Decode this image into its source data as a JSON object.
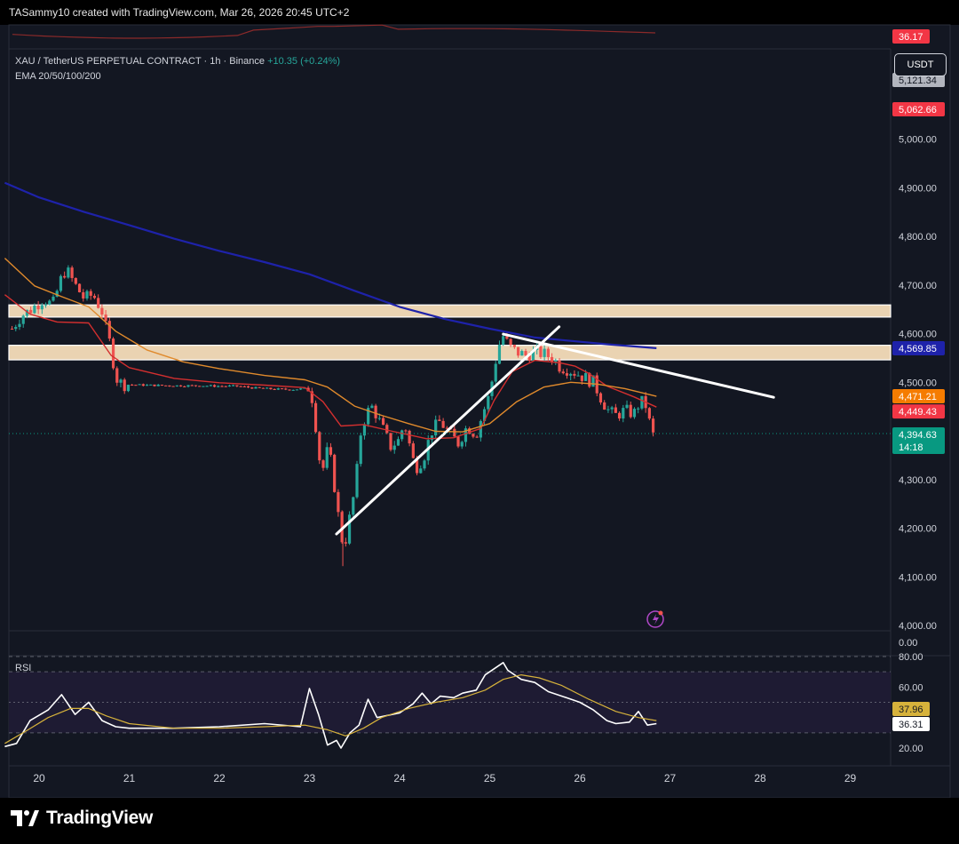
{
  "header": {
    "attribution": "TASammy10 created with TradingView.com, Mar 26, 2026 20:45 UTC+2"
  },
  "legend": {
    "symbol_line": "XAU / TetherUS PERPETUAL CONTRACT · 1h · Binance",
    "change": "+10.35 (+0.24%)",
    "indicator_line": "EMA 20/50/100/200",
    "rsi_label": "RSI"
  },
  "currency_button": "USDT",
  "branding": {
    "logo_text": "TradingView"
  },
  "colors": {
    "background": "#131722",
    "up_candle": "#26a69a",
    "down_candle": "#ef5350",
    "ema20": "#d32f2f",
    "ema50": "#e08a2c",
    "ema200": "#1e22aa",
    "zone": "#ead3b2",
    "trendline": "#ffffff",
    "rsi_line": "#ffffff",
    "rsi_ma": "#d6b23b"
  },
  "chart_data": [
    {
      "type": "candlestick",
      "title": "XAU / TetherUS PERPETUAL CONTRACT · 1h · Binance",
      "x_ticks": [
        "20",
        "21",
        "22",
        "23",
        "24",
        "25",
        "26",
        "27",
        "28",
        "29"
      ],
      "y_ticks": [
        "5,000.00",
        "4,900.00",
        "4,800.00",
        "4,700.00",
        "4,600.00",
        "4,500.00",
        "4,300.00",
        "4,200.00",
        "4,100.00",
        "4,000.00"
      ],
      "ylim": [
        4000,
        5100
      ],
      "price_labels": [
        {
          "text": "5,121.34",
          "color": "#b2b5be"
        },
        {
          "text": "5,062.66",
          "color": "#f23645"
        },
        {
          "text": "4,569.85",
          "color": "#1e22aa"
        },
        {
          "text": "4,471.21",
          "color": "#f57c00"
        },
        {
          "text": "4,449.43",
          "color": "#f23645"
        },
        {
          "text": "4,394.63",
          "color": "#089981",
          "sub": "14:18"
        }
      ],
      "last_price": 4394.63,
      "zones": [
        {
          "from": 4634,
          "to": 4659
        },
        {
          "from": 4546,
          "to": 4576
        }
      ],
      "trendlines": [
        {
          "from": [
            23.3,
            4188
          ],
          "to": [
            25.77,
            4614
          ]
        },
        {
          "from": [
            25.15,
            4599
          ],
          "to": [
            28.15,
            4469
          ]
        }
      ],
      "ohlc_path": [
        [
          19.7,
          4610
        ],
        [
          19.8,
          4636
        ],
        [
          19.92,
          4651
        ],
        [
          20.05,
          4672
        ],
        [
          20.15,
          4658
        ],
        [
          20.25,
          4716
        ],
        [
          20.3,
          4733
        ],
        [
          20.4,
          4700
        ],
        [
          20.5,
          4672
        ],
        [
          20.6,
          4680
        ],
        [
          20.7,
          4645
        ],
        [
          20.75,
          4605
        ],
        [
          20.8,
          4570
        ],
        [
          20.85,
          4510
        ],
        [
          20.92,
          4496
        ],
        [
          21.0,
          4495
        ],
        [
          21.2,
          4494
        ],
        [
          21.5,
          4493
        ],
        [
          21.8,
          4493
        ],
        [
          22.0,
          4492
        ],
        [
          22.2,
          4492
        ],
        [
          22.4,
          4488
        ],
        [
          22.6,
          4486
        ],
        [
          22.8,
          4485
        ],
        [
          22.95,
          4487
        ],
        [
          23.0,
          4490
        ],
        [
          23.05,
          4450
        ],
        [
          23.1,
          4350
        ],
        [
          23.15,
          4322
        ],
        [
          23.2,
          4360
        ],
        [
          23.25,
          4330
        ],
        [
          23.3,
          4250
        ],
        [
          23.35,
          4190
        ],
        [
          23.38,
          4155
        ],
        [
          23.42,
          4196
        ],
        [
          23.48,
          4255
        ],
        [
          23.52,
          4300
        ],
        [
          23.55,
          4380
        ],
        [
          23.6,
          4420
        ],
        [
          23.65,
          4440
        ],
        [
          23.7,
          4450
        ],
        [
          23.8,
          4410
        ],
        [
          23.9,
          4368
        ],
        [
          24.0,
          4382
        ],
        [
          24.05,
          4420
        ],
        [
          24.1,
          4380
        ],
        [
          24.15,
          4340
        ],
        [
          24.2,
          4325
        ],
        [
          24.28,
          4352
        ],
        [
          24.35,
          4398
        ],
        [
          24.45,
          4420
        ],
        [
          24.55,
          4395
        ],
        [
          24.65,
          4375
        ],
        [
          24.75,
          4410
        ],
        [
          24.85,
          4392
        ],
        [
          24.92,
          4435
        ],
        [
          25.0,
          4475
        ],
        [
          25.05,
          4530
        ],
        [
          25.1,
          4575
        ],
        [
          25.15,
          4595
        ],
        [
          25.22,
          4572
        ],
        [
          25.3,
          4562
        ],
        [
          25.4,
          4555
        ],
        [
          25.5,
          4562
        ],
        [
          25.6,
          4558
        ],
        [
          25.7,
          4550
        ],
        [
          25.78,
          4532
        ],
        [
          25.85,
          4528
        ],
        [
          25.95,
          4520
        ],
        [
          26.05,
          4510
        ],
        [
          26.15,
          4500
        ],
        [
          26.25,
          4462
        ],
        [
          26.33,
          4438
        ],
        [
          26.4,
          4432
        ],
        [
          26.5,
          4442
        ],
        [
          26.6,
          4435
        ],
        [
          26.66,
          4458
        ],
        [
          26.72,
          4460
        ],
        [
          26.76,
          4430
        ],
        [
          26.8,
          4390
        ],
        [
          26.85,
          4394
        ]
      ],
      "series": [
        {
          "name": "EMA 20",
          "points": [
            [
              19.62,
              4680
            ],
            [
              19.9,
              4640
            ],
            [
              20.2,
              4624
            ],
            [
              20.55,
              4622
            ],
            [
              20.8,
              4555
            ],
            [
              21.0,
              4530
            ],
            [
              21.5,
              4508
            ],
            [
              22.0,
              4499
            ],
            [
              22.5,
              4494
            ],
            [
              22.95,
              4489
            ],
            [
              23.15,
              4460
            ],
            [
              23.35,
              4410
            ],
            [
              23.6,
              4413
            ],
            [
              23.9,
              4400
            ],
            [
              24.3,
              4384
            ],
            [
              24.6,
              4386
            ],
            [
              24.9,
              4405
            ],
            [
              25.05,
              4463
            ],
            [
              25.25,
              4522
            ],
            [
              25.5,
              4545
            ],
            [
              25.78,
              4540
            ],
            [
              25.95,
              4533
            ],
            [
              26.1,
              4518
            ],
            [
              26.3,
              4492
            ],
            [
              26.6,
              4470
            ],
            [
              26.85,
              4449
            ]
          ]
        },
        {
          "name": "EMA 50",
          "points": [
            [
              19.62,
              4755
            ],
            [
              19.95,
              4698
            ],
            [
              20.25,
              4676
            ],
            [
              20.55,
              4655
            ],
            [
              20.85,
              4605
            ],
            [
              21.2,
              4566
            ],
            [
              21.6,
              4542
            ],
            [
              22.0,
              4528
            ],
            [
              22.5,
              4514
            ],
            [
              22.95,
              4505
            ],
            [
              23.2,
              4490
            ],
            [
              23.5,
              4451
            ],
            [
              23.8,
              4432
            ],
            [
              24.1,
              4415
            ],
            [
              24.4,
              4399
            ],
            [
              24.7,
              4398
            ],
            [
              25.0,
              4415
            ],
            [
              25.3,
              4460
            ],
            [
              25.6,
              4490
            ],
            [
              25.9,
              4500
            ],
            [
              26.2,
              4496
            ],
            [
              26.5,
              4487
            ],
            [
              26.85,
              4471
            ]
          ]
        },
        {
          "name": "EMA 200",
          "points": [
            [
              19.62,
              4910
            ],
            [
              20.0,
              4880
            ],
            [
              20.5,
              4850
            ],
            [
              21.0,
              4823
            ],
            [
              21.5,
              4795
            ],
            [
              22.0,
              4770
            ],
            [
              22.5,
              4747
            ],
            [
              23.0,
              4722
            ],
            [
              23.5,
              4688
            ],
            [
              24.0,
              4655
            ],
            [
              24.5,
              4630
            ],
            [
              25.0,
              4610
            ],
            [
              25.5,
              4592
            ],
            [
              25.9,
              4585
            ],
            [
              26.3,
              4578
            ],
            [
              26.85,
              4570
            ]
          ]
        }
      ]
    },
    {
      "type": "line",
      "title": "RSI",
      "y_ticks": [
        "80.00",
        "60.00",
        "20.00"
      ],
      "ylim": [
        20,
        80
      ],
      "band": [
        30,
        70
      ],
      "value_labels": [
        {
          "text": "37.96",
          "color": "#d6b23b"
        },
        {
          "text": "36.31",
          "color": "#ffffff"
        }
      ],
      "series": [
        {
          "name": "RSI",
          "points": [
            [
              19.62,
              21
            ],
            [
              19.75,
              23
            ],
            [
              19.9,
              38
            ],
            [
              20.1,
              45
            ],
            [
              20.25,
              55
            ],
            [
              20.4,
              42
            ],
            [
              20.55,
              50
            ],
            [
              20.7,
              38
            ],
            [
              20.85,
              34
            ],
            [
              21.0,
              33
            ],
            [
              21.5,
              33
            ],
            [
              22.0,
              34
            ],
            [
              22.5,
              36
            ],
            [
              22.9,
              34
            ],
            [
              23.0,
              59
            ],
            [
              23.1,
              42
            ],
            [
              23.2,
              22
            ],
            [
              23.3,
              25
            ],
            [
              23.35,
              20
            ],
            [
              23.45,
              30
            ],
            [
              23.55,
              35
            ],
            [
              23.65,
              52
            ],
            [
              23.75,
              40
            ],
            [
              24.0,
              43
            ],
            [
              24.15,
              49
            ],
            [
              24.25,
              56
            ],
            [
              24.35,
              49
            ],
            [
              24.45,
              54
            ],
            [
              24.6,
              53
            ],
            [
              24.7,
              56
            ],
            [
              24.85,
              58
            ],
            [
              24.95,
              68
            ],
            [
              25.05,
              72
            ],
            [
              25.15,
              76
            ],
            [
              25.2,
              71
            ],
            [
              25.35,
              65
            ],
            [
              25.5,
              63
            ],
            [
              25.65,
              57
            ],
            [
              25.85,
              53
            ],
            [
              26.0,
              50
            ],
            [
              26.15,
              45
            ],
            [
              26.3,
              38
            ],
            [
              26.4,
              36
            ],
            [
              26.55,
              37
            ],
            [
              26.65,
              44
            ],
            [
              26.75,
              35
            ],
            [
              26.85,
              36
            ]
          ]
        },
        {
          "name": "RSI MA",
          "points": [
            [
              19.62,
              23
            ],
            [
              19.85,
              31
            ],
            [
              20.1,
              40
            ],
            [
              20.35,
              46
            ],
            [
              20.55,
              46
            ],
            [
              20.75,
              41
            ],
            [
              21.0,
              36
            ],
            [
              21.5,
              33
            ],
            [
              22.0,
              33
            ],
            [
              22.5,
              34
            ],
            [
              22.95,
              35
            ],
            [
              23.2,
              32
            ],
            [
              23.4,
              28
            ],
            [
              23.6,
              33
            ],
            [
              23.8,
              40
            ],
            [
              24.1,
              46
            ],
            [
              24.4,
              50
            ],
            [
              24.7,
              53
            ],
            [
              24.95,
              58
            ],
            [
              25.15,
              65
            ],
            [
              25.35,
              68
            ],
            [
              25.55,
              66
            ],
            [
              25.8,
              61
            ],
            [
              26.1,
              52
            ],
            [
              26.4,
              44
            ],
            [
              26.65,
              40
            ],
            [
              26.85,
              38
            ]
          ]
        }
      ]
    }
  ]
}
